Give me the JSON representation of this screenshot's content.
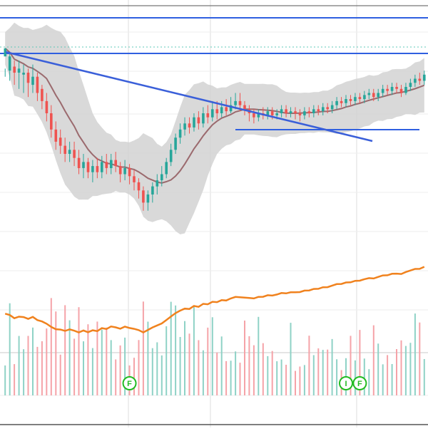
{
  "chart_data": {
    "type": "candlestick",
    "title": "",
    "xlabel": "",
    "ylabel": "",
    "grid": true,
    "colors": {
      "up": "#26a69a",
      "down": "#ef5350",
      "moving_average": "#9b6a6e",
      "band_fill": "#d0d0d0",
      "trendline": "#3a5fd9",
      "horizontal_line": "#2f5fe0",
      "dotted_line": "#5fc8b8",
      "overlay_line": "#f0821e",
      "volume_up": "#8fd2c6",
      "volume_down": "#f5a3a8",
      "marker": "#22bb22",
      "grid": "#dddddd"
    },
    "price_axis": {
      "min": 0,
      "max": 100
    },
    "indicators": [
      "moving-average",
      "bollinger-bands",
      "trendline",
      "horizontal-levels",
      "volume",
      "relative-line"
    ],
    "candles": [
      [
        88,
        92,
        82,
        78
      ],
      [
        81,
        88,
        90,
        76
      ],
      [
        83,
        80,
        86,
        74
      ],
      [
        80,
        82,
        86,
        72
      ],
      [
        79,
        80,
        84,
        70
      ],
      [
        80,
        75,
        82,
        68
      ],
      [
        74,
        78,
        84,
        70
      ],
      [
        78,
        70,
        80,
        66
      ],
      [
        72,
        66,
        74,
        62
      ],
      [
        66,
        60,
        70,
        56
      ],
      [
        60,
        52,
        64,
        48
      ],
      [
        52,
        46,
        56,
        42
      ],
      [
        48,
        44,
        52,
        40
      ],
      [
        44,
        40,
        48,
        36
      ],
      [
        40,
        42,
        46,
        36
      ],
      [
        42,
        38,
        46,
        34
      ],
      [
        38,
        33,
        42,
        30
      ],
      [
        33,
        36,
        40,
        28
      ],
      [
        36,
        31,
        38,
        28
      ],
      [
        31,
        34,
        37,
        26
      ],
      [
        34,
        31,
        38,
        28
      ],
      [
        31,
        36,
        39,
        28
      ],
      [
        36,
        33,
        40,
        30
      ],
      [
        33,
        37,
        40,
        30
      ],
      [
        37,
        34,
        41,
        31
      ],
      [
        34,
        30,
        36,
        26
      ],
      [
        30,
        33,
        37,
        27
      ],
      [
        33,
        29,
        35,
        25
      ],
      [
        29,
        26,
        32,
        22
      ],
      [
        26,
        22,
        28,
        18
      ],
      [
        22,
        16,
        24,
        12
      ],
      [
        16,
        20,
        22,
        12
      ],
      [
        20,
        24,
        26,
        16
      ],
      [
        24,
        27,
        30,
        20
      ],
      [
        27,
        30,
        34,
        24
      ],
      [
        30,
        36,
        38,
        28
      ],
      [
        36,
        42,
        45,
        34
      ],
      [
        42,
        48,
        50,
        40
      ],
      [
        48,
        52,
        55,
        45
      ],
      [
        52,
        55,
        58,
        49
      ],
      [
        55,
        53,
        58,
        50
      ],
      [
        53,
        58,
        60,
        51
      ],
      [
        58,
        55,
        61,
        52
      ],
      [
        55,
        60,
        63,
        53
      ],
      [
        60,
        58,
        64,
        55
      ],
      [
        58,
        62,
        66,
        56
      ],
      [
        62,
        60,
        66,
        57
      ],
      [
        60,
        63,
        66,
        58
      ],
      [
        63,
        61,
        67,
        59
      ],
      [
        61,
        64,
        68,
        60
      ],
      [
        64,
        66,
        70,
        62
      ],
      [
        66,
        64,
        70,
        61
      ],
      [
        64,
        62,
        66,
        59
      ],
      [
        62,
        60,
        64,
        56
      ],
      [
        60,
        58,
        62,
        55
      ],
      [
        58,
        60,
        62,
        56
      ],
      [
        60,
        59,
        63,
        57
      ],
      [
        59,
        61,
        63,
        57
      ],
      [
        61,
        59,
        63,
        57
      ],
      [
        59,
        60,
        62,
        57
      ],
      [
        60,
        62,
        64,
        58
      ],
      [
        62,
        60,
        64,
        58
      ],
      [
        60,
        61,
        63,
        58
      ],
      [
        61,
        60,
        63,
        57
      ],
      [
        60,
        59,
        62,
        56
      ],
      [
        59,
        61,
        63,
        57
      ],
      [
        61,
        60,
        63,
        58
      ],
      [
        60,
        62,
        64,
        58
      ],
      [
        62,
        61,
        64,
        59
      ],
      [
        61,
        63,
        65,
        59
      ],
      [
        63,
        62,
        65,
        60
      ],
      [
        62,
        64,
        66,
        60
      ],
      [
        64,
        66,
        68,
        62
      ],
      [
        66,
        65,
        68,
        63
      ],
      [
        65,
        67,
        69,
        63
      ],
      [
        67,
        66,
        69,
        64
      ],
      [
        66,
        68,
        70,
        64
      ],
      [
        68,
        67,
        70,
        65
      ],
      [
        67,
        69,
        71,
        65
      ],
      [
        69,
        70,
        72,
        67
      ],
      [
        70,
        68,
        72,
        66
      ],
      [
        68,
        70,
        72,
        66
      ],
      [
        70,
        72,
        74,
        68
      ],
      [
        72,
        71,
        74,
        69
      ],
      [
        71,
        73,
        75,
        69
      ],
      [
        73,
        72,
        75,
        70
      ],
      [
        72,
        70,
        74,
        68
      ],
      [
        70,
        73,
        75,
        69
      ],
      [
        73,
        75,
        77,
        71
      ],
      [
        75,
        77,
        79,
        73
      ],
      [
        77,
        76,
        80,
        74
      ],
      [
        76,
        79,
        81,
        74
      ]
    ],
    "markers": [
      {
        "label": "F",
        "index": 27
      },
      {
        "label": "I",
        "index": 74
      },
      {
        "label": "F",
        "index": 77
      }
    ]
  }
}
